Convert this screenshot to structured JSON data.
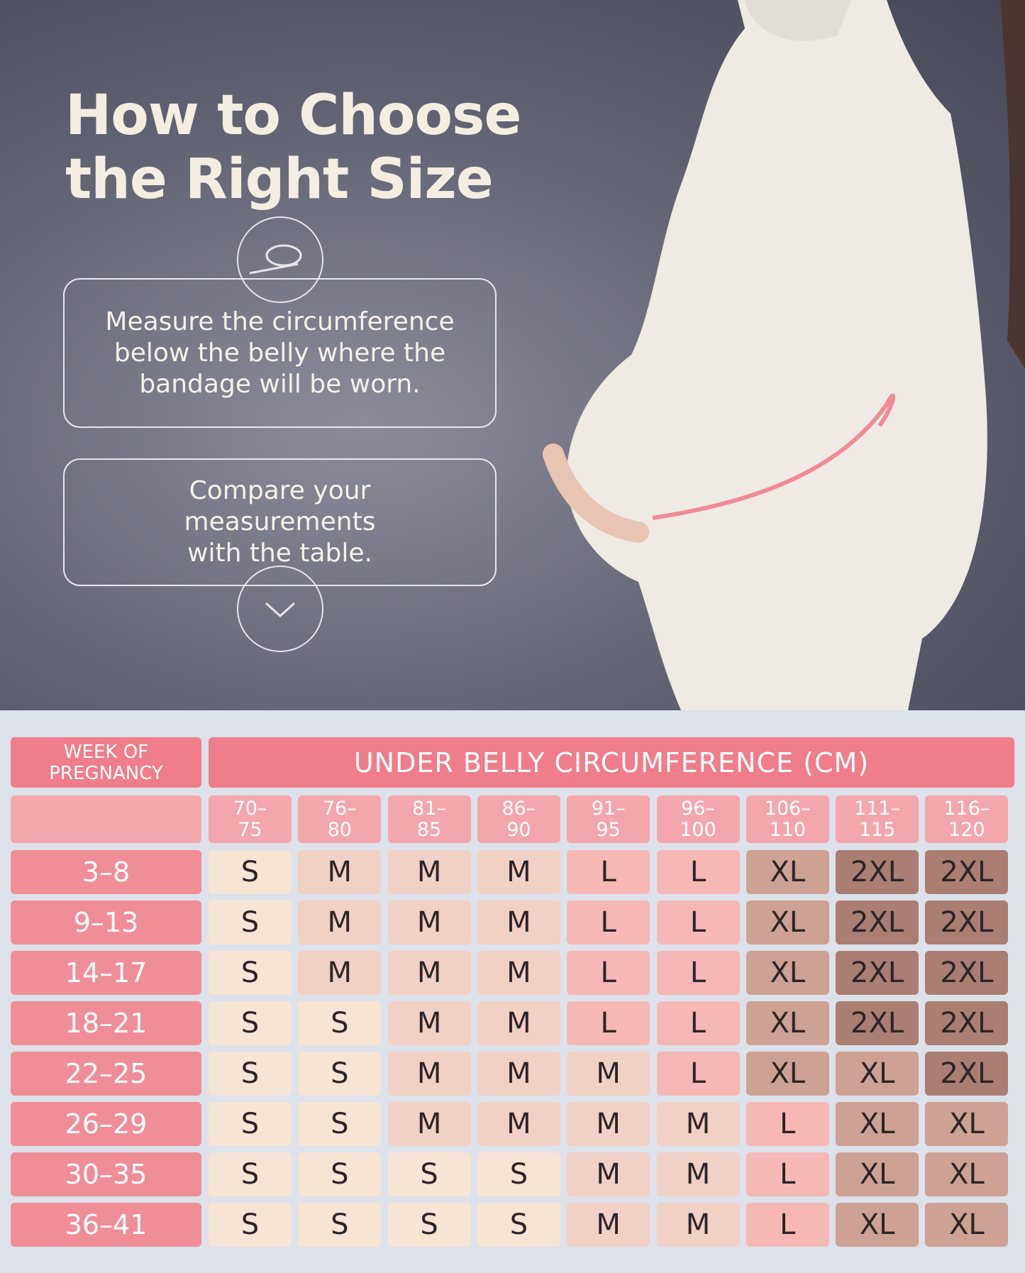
{
  "header": {
    "title": "How to Choose the Right Size"
  },
  "steps": [
    "Measure the circumference below the belly where the bandage will be worn.",
    "Compare your measurements with the table."
  ],
  "table": {
    "week_header": "WEEK OF PREGNANCY",
    "circumference_header": "UNDER BELLY CIRCUMFERENCE (CM)",
    "columns": [
      "70–75",
      "76–80",
      "81–85",
      "86–90",
      "91–95",
      "96–100",
      "106–110",
      "111–115",
      "116–120"
    ],
    "rows": [
      {
        "week": "3–8",
        "sizes": [
          "S",
          "M",
          "M",
          "M",
          "L",
          "L",
          "XL",
          "2XL",
          "2XL"
        ]
      },
      {
        "week": "9–13",
        "sizes": [
          "S",
          "M",
          "M",
          "M",
          "L",
          "L",
          "XL",
          "2XL",
          "2XL"
        ]
      },
      {
        "week": "14–17",
        "sizes": [
          "S",
          "M",
          "M",
          "M",
          "L",
          "L",
          "XL",
          "2XL",
          "2XL"
        ]
      },
      {
        "week": "18–21",
        "sizes": [
          "S",
          "S",
          "M",
          "M",
          "L",
          "L",
          "XL",
          "2XL",
          "2XL"
        ]
      },
      {
        "week": "22–25",
        "sizes": [
          "S",
          "S",
          "M",
          "M",
          "M",
          "L",
          "XL",
          "XL",
          "2XL"
        ]
      },
      {
        "week": "26–29",
        "sizes": [
          "S",
          "S",
          "M",
          "M",
          "M",
          "M",
          "L",
          "XL",
          "XL"
        ]
      },
      {
        "week": "30–35",
        "sizes": [
          "S",
          "S",
          "S",
          "S",
          "M",
          "M",
          "L",
          "XL",
          "XL"
        ]
      },
      {
        "week": "36–41",
        "sizes": [
          "S",
          "S",
          "S",
          "S",
          "M",
          "M",
          "L",
          "XL",
          "XL"
        ]
      }
    ],
    "size_colors": {
      "S": "#f6e4d4",
      "M": "#f1d0c5",
      "L": "#f5b8b6",
      "XL": "#cda193",
      "2XL": "#aa7e72"
    }
  }
}
